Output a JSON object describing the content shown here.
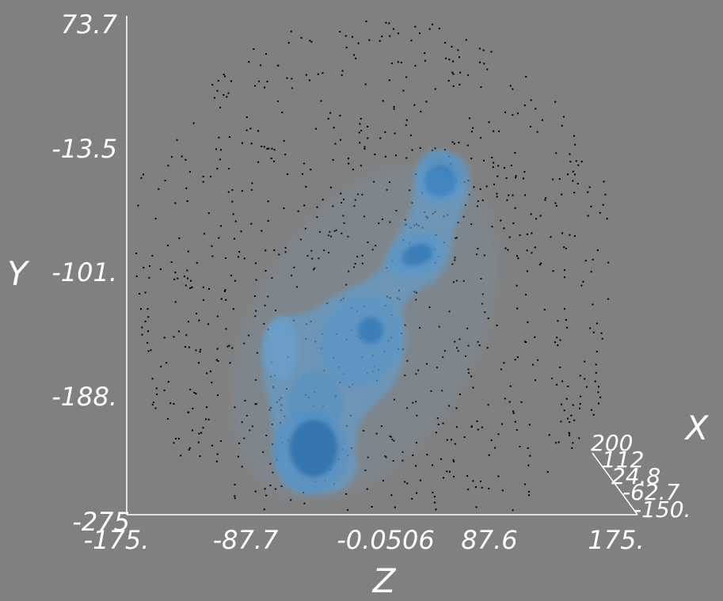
{
  "chart_data": {
    "type": "3d-density-volume",
    "axes": {
      "x": {
        "label": "X",
        "ticks": [
          "200",
          "112",
          "24.8",
          "-62.7",
          "-150."
        ],
        "range": [
          -150,
          200
        ]
      },
      "y": {
        "label": "Y",
        "ticks": [
          "73.7",
          "-13.5",
          "-101.",
          "-188.",
          "-275"
        ],
        "range": [
          -275,
          73.7
        ]
      },
      "z": {
        "label": "Z",
        "ticks": [
          "-175.",
          "-87.7",
          "-0.0506",
          "87.6",
          "175."
        ],
        "range": [
          -175,
          175
        ]
      }
    },
    "volume_color": "#4a90c8",
    "background_color": "#808080",
    "scatter_points": "black dots",
    "density_blobs": [
      {
        "z": 31,
        "y": -19,
        "level": "high"
      },
      {
        "z": 16,
        "y": -96,
        "level": "high"
      },
      {
        "z": -5,
        "y": -146,
        "level": "high"
      },
      {
        "z": -50,
        "y": -222,
        "level": "high"
      },
      {
        "z": -47,
        "y": -188,
        "level": "medium"
      }
    ]
  }
}
